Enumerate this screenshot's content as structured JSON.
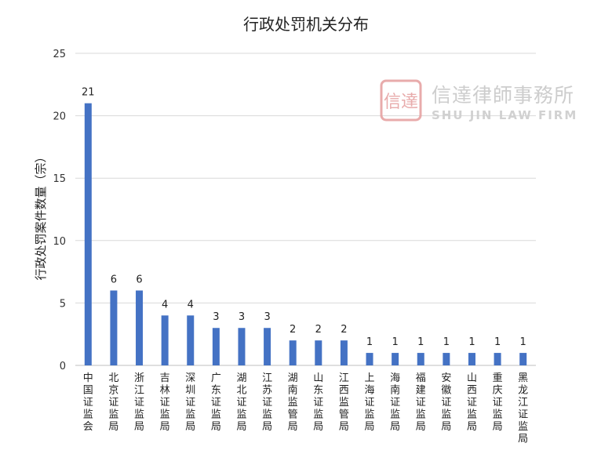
{
  "chart_data": {
    "type": "bar",
    "title": "行政处罚机关分布",
    "xlabel": "",
    "ylabel": "行政处罚案件数量（宗）",
    "ylim": [
      0,
      25
    ],
    "yticks": [
      0,
      5,
      10,
      15,
      20,
      25
    ],
    "grid": true,
    "categories": [
      "中国证监会",
      "北京证监局",
      "浙江证监局",
      "吉林证监局",
      "深圳证监局",
      "广东证监局",
      "湖北证监局",
      "江苏证监局",
      "湖南监管局",
      "山东证监局",
      "江西监管局",
      "上海证监局",
      "海南证监局",
      "福建证监局",
      "安徽证监局",
      "山西证监局",
      "重庆证监局",
      "黑龙江证监局"
    ],
    "values": [
      21,
      6,
      6,
      4,
      4,
      3,
      3,
      3,
      2,
      2,
      2,
      1,
      1,
      1,
      1,
      1,
      1,
      1
    ],
    "bar_color": "#4472c4"
  },
  "watermark": {
    "seal_text": "信達",
    "name_cn": "信達律師事務所",
    "name_en": "SHU JIN LAW FIRM",
    "seal_color": "#e6a2a2"
  }
}
